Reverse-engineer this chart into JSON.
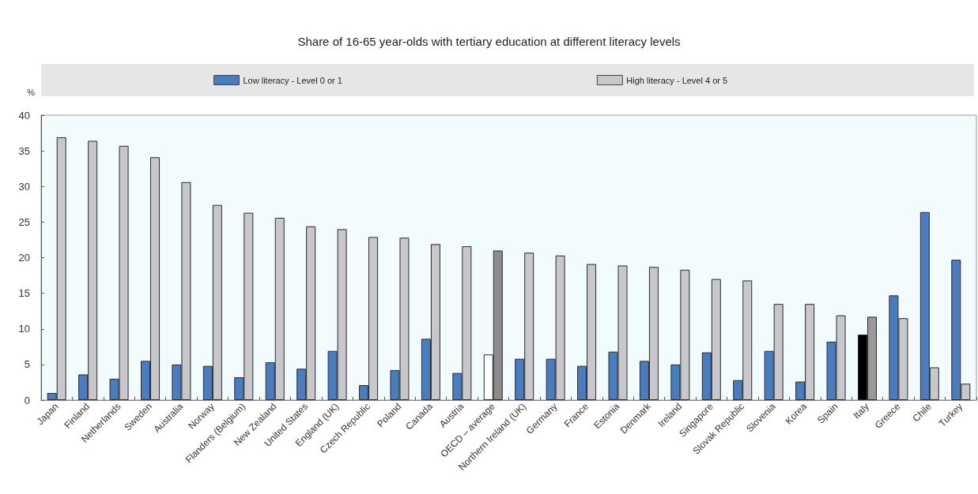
{
  "chart_data": {
    "type": "bar",
    "title": "Share of 16-65 year-olds with tertiary education at different literacy levels",
    "ylabel": "%",
    "categories": [
      "Japan",
      "Finland",
      "Netherlands",
      "Sweden",
      "Australia",
      "Norway",
      "Flanders (Belgium)",
      "New Zealand",
      "United States",
      "England (UK)",
      "Czech Republic",
      "Poland",
      "Canada",
      "Austria",
      "OECD – average",
      "Northern Ireland (UK)",
      "Germany",
      "France",
      "Estonia",
      "Denmark",
      "Ireland",
      "Singapore",
      "Slovak Republic",
      "Slovenia",
      "Korea",
      "Spain",
      "Italy",
      "Greece",
      "Chile",
      "Turkey"
    ],
    "series": [
      {
        "name": "Low literacy - Level 0 or 1",
        "color": "#4a7cc0",
        "colors": [
          "#4a7cc0",
          "#4a7cc0",
          "#4a7cc0",
          "#4a7cc0",
          "#4a7cc0",
          "#4a7cc0",
          "#4a7cc0",
          "#4a7cc0",
          "#4a7cc0",
          "#4a7cc0",
          "#4a7cc0",
          "#4a7cc0",
          "#4a7cc0",
          "#4a7cc0",
          "#ffffff",
          "#4a7cc0",
          "#4a7cc0",
          "#4a7cc0",
          "#4a7cc0",
          "#4a7cc0",
          "#4a7cc0",
          "#4a7cc0",
          "#4a7cc0",
          "#4a7cc0",
          "#4a7cc0",
          "#4a7cc0",
          "#000000",
          "#4a7cc0",
          "#4a7cc0",
          "#4a7cc0"
        ],
        "values": [
          1.0,
          3.6,
          3.0,
          5.5,
          5.0,
          4.8,
          3.2,
          5.3,
          4.4,
          6.9,
          2.1,
          4.2,
          8.6,
          3.8,
          6.4,
          5.8,
          5.8,
          4.8,
          6.8,
          5.5,
          5.0,
          6.7,
          2.8,
          6.9,
          2.6,
          8.2,
          9.2,
          14.7,
          26.4,
          19.7
        ]
      },
      {
        "name": "High literacy - Level 4 or 5",
        "color": "#c8c8cc",
        "colors": [
          "#c8c8cc",
          "#c8c8cc",
          "#c8c8cc",
          "#c8c8cc",
          "#c8c8cc",
          "#c8c8cc",
          "#c8c8cc",
          "#c8c8cc",
          "#c8c8cc",
          "#c8c8cc",
          "#c8c8cc",
          "#c8c8cc",
          "#c8c8cc",
          "#c8c8cc",
          "#8c8c8c",
          "#c8c8cc",
          "#c8c8cc",
          "#c8c8cc",
          "#c8c8cc",
          "#c8c8cc",
          "#c8c8cc",
          "#c8c8cc",
          "#c8c8cc",
          "#c8c8cc",
          "#c8c8cc",
          "#c8c8cc",
          "#999999",
          "#c8c8cc",
          "#c8c8cc",
          "#c8c8cc"
        ],
        "values": [
          36.9,
          36.4,
          35.7,
          34.1,
          30.6,
          27.4,
          26.3,
          25.6,
          24.4,
          24.0,
          22.9,
          22.8,
          21.9,
          21.6,
          21.0,
          20.7,
          20.3,
          19.1,
          18.9,
          18.7,
          18.3,
          17.0,
          16.8,
          13.5,
          13.5,
          11.9,
          11.7,
          11.5,
          4.6,
          2.3
        ]
      }
    ],
    "ylim": [
      0,
      40
    ],
    "yticks": [
      0,
      5,
      10,
      15,
      20,
      25,
      30,
      35,
      40
    ],
    "grid": false,
    "legend": "top"
  }
}
